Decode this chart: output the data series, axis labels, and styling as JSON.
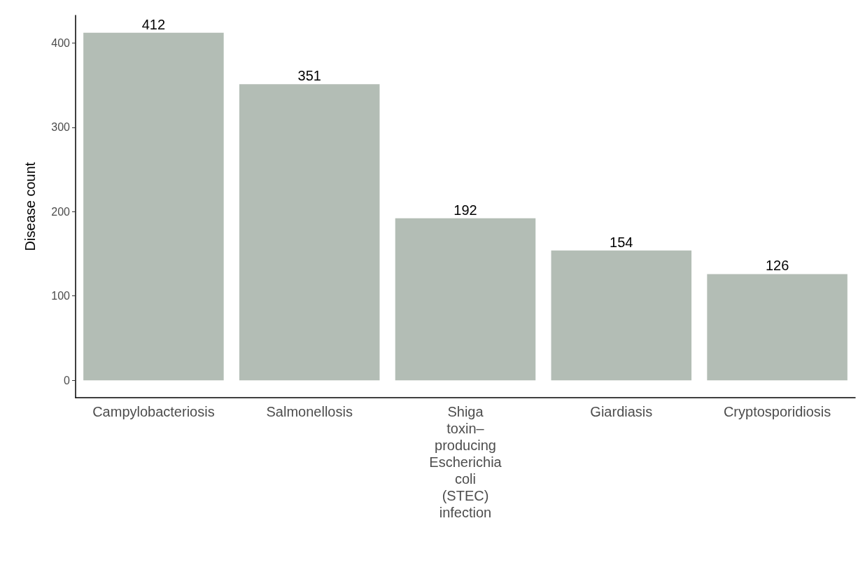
{
  "chart_data": {
    "type": "bar",
    "ylabel": "Disease count",
    "categories": [
      "Campylobacteriosis",
      "Salmonellosis",
      "Shiga toxin–producing Escherichia coli (STEC) infection",
      "Giardiasis",
      "Cryptosporidiosis"
    ],
    "values": [
      412,
      351,
      192,
      154,
      126
    ],
    "color": "#b3bdb5",
    "ylim": [
      -20.6,
      432.6
    ],
    "yticks": [
      0,
      100,
      200,
      300,
      400
    ],
    "data_labels": true,
    "grid": false
  }
}
